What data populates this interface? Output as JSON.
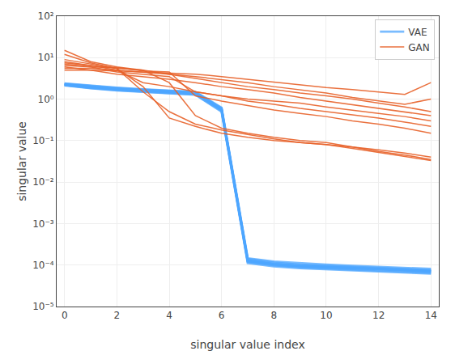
{
  "chart_data": {
    "type": "line",
    "xlabel": "singular value index",
    "ylabel": "singular value",
    "log": "y",
    "grid": true,
    "legend": "upper right",
    "x": [
      0,
      1,
      2,
      3,
      4,
      5,
      6,
      7,
      8,
      9,
      10,
      11,
      12,
      13,
      14
    ],
    "xlim": [
      -0.3,
      14.3
    ],
    "xticks": [
      0,
      2,
      4,
      6,
      8,
      10,
      12,
      14
    ],
    "ylim": [
      1e-05,
      100.0
    ],
    "yticks": [
      {
        "value": 1e-05,
        "label": "10⁻⁵"
      },
      {
        "value": 0.0001,
        "label": "10⁻⁴"
      },
      {
        "value": 0.001,
        "label": "10⁻³"
      },
      {
        "value": 0.01,
        "label": "10⁻²"
      },
      {
        "value": 0.1,
        "label": "10⁻¹"
      },
      {
        "value": 1,
        "label": "10⁰"
      },
      {
        "value": 10,
        "label": "10¹"
      },
      {
        "value": 100,
        "label": "10²"
      }
    ],
    "series": [
      {
        "name": "VAE",
        "color": "#4da6ff",
        "values": [
          2.2,
          1.9,
          1.7,
          1.55,
          1.45,
          1.35,
          0.55,
          0.00013,
          0.000105,
          9.5e-05,
          9e-05,
          8.5e-05,
          8.2e-05,
          7.8e-05,
          7.2e-05
        ]
      },
      {
        "color": "#4da6ff",
        "values": [
          2.3,
          2.0,
          1.8,
          1.65,
          1.55,
          1.45,
          0.6,
          0.00014,
          0.000115,
          0.000102,
          9.6e-05,
          9e-05,
          8.6e-05,
          8.2e-05,
          7.6e-05
        ]
      },
      {
        "color": "#4da6ff",
        "values": [
          2.4,
          2.1,
          1.9,
          1.72,
          1.6,
          1.5,
          0.62,
          0.000145,
          0.000122,
          0.00011,
          0.000102,
          9.6e-05,
          9.1e-05,
          8.7e-05,
          8.1e-05
        ]
      },
      {
        "color": "#4da6ff",
        "values": [
          2.2,
          1.85,
          1.65,
          1.5,
          1.4,
          1.3,
          0.52,
          0.000118,
          9.8e-05,
          8.8e-05,
          8.3e-05,
          7.8e-05,
          7.4e-05,
          7e-05,
          6.5e-05
        ]
      },
      {
        "color": "#4da6ff",
        "values": [
          2.35,
          2.05,
          1.85,
          1.68,
          1.57,
          1.47,
          0.58,
          0.000128,
          0.000107,
          9.7e-05,
          9.1e-05,
          8.6e-05,
          8.2e-05,
          7.8e-05,
          7.3e-05
        ]
      },
      {
        "color": "#4da6ff",
        "values": [
          2.25,
          1.95,
          1.75,
          1.6,
          1.5,
          1.4,
          0.56,
          0.000123,
          0.000103,
          9.3e-05,
          8.7e-05,
          8.2e-05,
          7.9e-05,
          7.5e-05,
          6.9e-05
        ]
      },
      {
        "color": "#4da6ff",
        "values": [
          2.15,
          1.82,
          1.62,
          1.48,
          1.38,
          1.28,
          0.5,
          0.000112,
          9.3e-05,
          8.4e-05,
          7.9e-05,
          7.4e-05,
          7e-05,
          6.6e-05,
          6.2e-05
        ]
      },
      {
        "color": "#4da6ff",
        "values": [
          2.28,
          1.97,
          1.77,
          1.62,
          1.52,
          1.42,
          0.57,
          0.000125,
          0.000105,
          9.5e-05,
          8.9e-05,
          8.4e-05,
          8e-05,
          7.6e-05,
          7.1e-05
        ]
      },
      {
        "name": "GAN",
        "color": "#e8622a",
        "values": [
          15.0,
          8.0,
          6.0,
          5.0,
          2.5,
          0.4,
          0.2,
          0.15,
          0.12,
          0.1,
          0.09,
          0.07,
          0.06,
          0.05,
          0.04
        ]
      },
      {
        "color": "#e8622a",
        "values": [
          12.0,
          7.5,
          5.5,
          2.0,
          0.35,
          0.22,
          0.15,
          0.12,
          0.1,
          0.09,
          0.08,
          0.07,
          0.055,
          0.045,
          0.035
        ]
      },
      {
        "color": "#e8622a",
        "values": [
          8.0,
          6.5,
          5.0,
          2.5,
          2.0,
          1.5,
          1.2,
          1.0,
          0.9,
          0.8,
          0.65,
          0.55,
          0.45,
          0.38,
          0.3
        ]
      },
      {
        "color": "#e8622a",
        "values": [
          7.0,
          6.0,
          4.5,
          4.0,
          3.5,
          1.5,
          1.2,
          0.9,
          0.75,
          0.6,
          0.5,
          0.42,
          0.35,
          0.28,
          0.22
        ]
      },
      {
        "color": "#e8622a",
        "values": [
          6.0,
          5.0,
          4.0,
          3.5,
          3.0,
          2.5,
          2.0,
          1.7,
          1.4,
          1.1,
          0.9,
          0.75,
          0.6,
          0.5,
          0.4
        ]
      },
      {
        "color": "#e8622a",
        "values": [
          5.5,
          5.5,
          5.0,
          4.5,
          4.0,
          3.5,
          3.0,
          2.5,
          2.0,
          1.7,
          1.4,
          1.1,
          0.9,
          0.75,
          1.0
        ]
      },
      {
        "color": "#e8622a",
        "values": [
          5.0,
          5.0,
          4.8,
          4.5,
          4.2,
          4.0,
          3.5,
          3.0,
          2.5,
          2.2,
          1.9,
          1.7,
          1.5,
          1.3,
          2.5
        ]
      },
      {
        "color": "#e8622a",
        "values": [
          7.5,
          6.5,
          5.5,
          5.0,
          4.0,
          3.2,
          2.5,
          2.0,
          1.7,
          1.4,
          1.2,
          1.0,
          0.8,
          0.65,
          0.5
        ]
      },
      {
        "color": "#e8622a",
        "values": [
          9.0,
          7.0,
          5.5,
          1.5,
          0.5,
          0.25,
          0.18,
          0.14,
          0.11,
          0.09,
          0.08,
          0.065,
          0.052,
          0.042,
          0.033
        ]
      },
      {
        "color": "#e8622a",
        "values": [
          6.5,
          6.0,
          5.8,
          4.8,
          4.5,
          1.2,
          0.9,
          0.7,
          0.55,
          0.45,
          0.38,
          0.3,
          0.25,
          0.2,
          0.15
        ]
      }
    ]
  }
}
